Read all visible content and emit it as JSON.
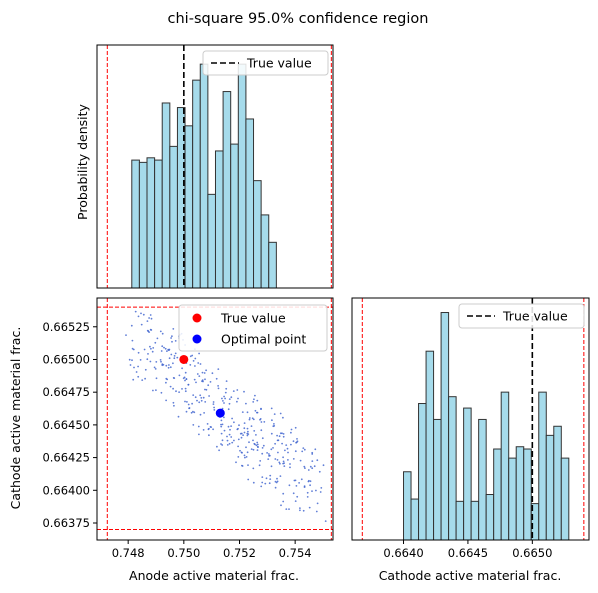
{
  "chart_data": {
    "type": "corner-plot",
    "title": "chi-square 95.0% confidence region",
    "panels": {
      "top_left": {
        "type": "histogram",
        "ylabel": "Probability density",
        "xlim": [
          0.74688,
          0.75536
        ],
        "bin_start": 0.74813,
        "bin_width": 0.0002734,
        "counts": [
          0.56,
          0.55,
          0.57,
          0.56,
          0.81,
          0.62,
          0.79,
          0.71,
          0.91,
          0.98,
          0.41,
          0.6,
          0.86,
          0.63,
          0.98,
          0.74,
          0.47,
          0.32,
          0.2
        ],
        "true_value": 0.75,
        "bound_lines": [
          0.74725,
          0.7553
        ],
        "legend": {
          "true_value": "True value"
        }
      },
      "bottom_left": {
        "type": "scatter",
        "xlabel": "Anode active material frac.",
        "ylabel": "Cathode active material frac.",
        "xlim": [
          0.74688,
          0.75536
        ],
        "ylim": [
          0.66362,
          0.66547
        ],
        "xticks": [
          "0.748",
          "0.750",
          "0.752",
          "0.754"
        ],
        "xtick_values": [
          0.748,
          0.75,
          0.752,
          0.754
        ],
        "yticks": [
          "0.66375",
          "0.66400",
          "0.66425",
          "0.66450",
          "0.66475",
          "0.66500",
          "0.66525"
        ],
        "ytick_values": [
          0.66375,
          0.664,
          0.66425,
          0.6645,
          0.66475,
          0.665,
          0.66525
        ],
        "true_point": {
          "x": 0.75,
          "y": 0.665
        },
        "optimal_point": {
          "x": 0.75131,
          "y": 0.66459
        },
        "cloud_corners": [
          [
            0.7483,
            0.66516
          ],
          [
            0.7506,
            0.66475
          ],
          [
            0.7547,
            0.66402
          ],
          [
            0.7522,
            0.66441
          ]
        ],
        "bound_lines_x": [
          0.74725,
          0.7553
        ],
        "bound_lines_y": [
          0.6637,
          0.6654
        ],
        "legend": {
          "true_value": "True value",
          "optimal_point": "Optimal point"
        },
        "colors": {
          "true": "#ff0000",
          "optimal": "#0000ff",
          "cloud": "#3a5fcd"
        }
      },
      "bottom_right": {
        "type": "histogram",
        "xlabel": "Cathode active material frac.",
        "xlim": [
          0.6636,
          0.66544
        ],
        "xticks": [
          "0.6640",
          "0.6645",
          "0.6650"
        ],
        "xtick_values": [
          0.664,
          0.6645,
          0.665
        ],
        "bin_start": 0.664,
        "bin_width": 5.833e-05,
        "counts": [
          0.3,
          0.18,
          0.6,
          0.83,
          0.53,
          1.0,
          0.63,
          0.17,
          0.58,
          0.17,
          0.53,
          0.2,
          0.4,
          0.65,
          0.36,
          0.41,
          0.4,
          0.16,
          0.65,
          0.46,
          0.5,
          0.36
        ],
        "true_value": 0.665,
        "bound_lines": [
          0.66368,
          0.6654
        ],
        "legend": {
          "true_value": "True value"
        }
      }
    },
    "colors": {
      "hist_fill": "#a6dbeb",
      "hist_edge": "#333333",
      "bound": "#ff0000",
      "true_line": "#000000"
    }
  }
}
